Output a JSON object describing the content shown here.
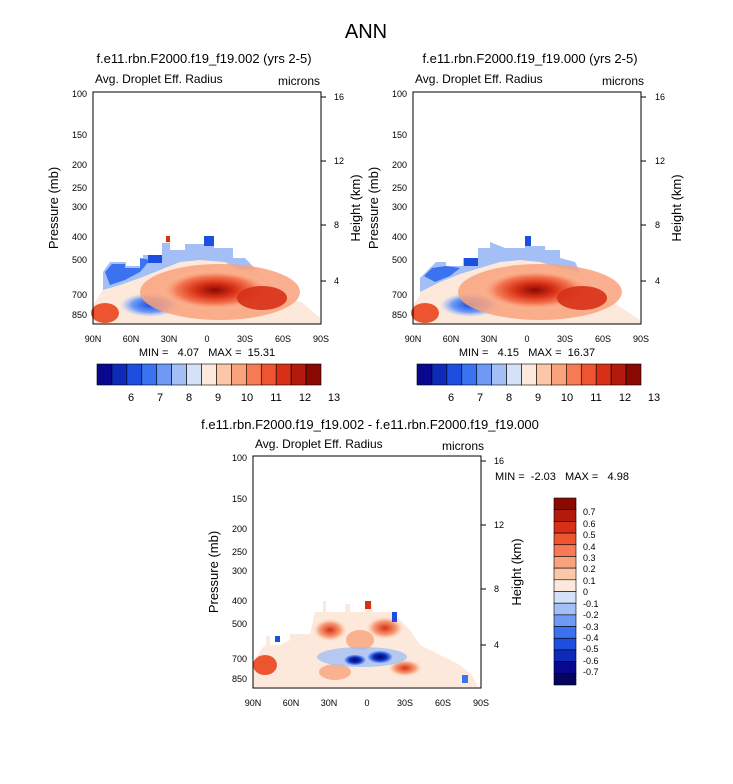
{
  "title": "ANN",
  "chart_data": [
    {
      "type": "heatmap",
      "title": "f.e11.rbn.F2000.f19_f19.002 (yrs 2-5)",
      "left_label": "Avg. Droplet Eff. Radius",
      "units": "microns",
      "ylabel": "Pressure (mb)",
      "y2label": "Height (km)",
      "x_ticks": [
        "90N",
        "60N",
        "30N",
        "0",
        "30S",
        "60S",
        "90S"
      ],
      "y_ticks": [
        "100",
        "150",
        "200",
        "250",
        "300",
        "400",
        "500",
        "700",
        "850"
      ],
      "y2_ticks": [
        "16",
        "12",
        "8",
        "4"
      ],
      "stats": "MIN =   4.07   MAX =  15.31",
      "colorbar_labels": [
        "6",
        "7",
        "8",
        "9",
        "10",
        "11",
        "12",
        "13"
      ],
      "colorbar_colors": [
        "#08088f",
        "#0d2bb8",
        "#1c4fe0",
        "#3a72f0",
        "#6e9af5",
        "#a3bff5",
        "#d3e2f7",
        "#fde9dc",
        "#fcc7a8",
        "#f9a27c",
        "#f57a55",
        "#ec5530",
        "#d73016",
        "#b31a0c",
        "#8a0a03"
      ]
    },
    {
      "type": "heatmap",
      "title": "f.e11.rbn.F2000.f19_f19.000 (yrs 2-5)",
      "left_label": "Avg. Droplet Eff. Radius",
      "units": "microns",
      "ylabel": "Pressure (mb)",
      "y2label": "Height (km)",
      "x_ticks": [
        "90N",
        "60N",
        "30N",
        "0",
        "30S",
        "60S",
        "90S"
      ],
      "y_ticks": [
        "100",
        "150",
        "200",
        "250",
        "300",
        "400",
        "500",
        "700",
        "850"
      ],
      "y2_ticks": [
        "16",
        "12",
        "8",
        "4"
      ],
      "stats": "MIN =   4.15   MAX =  16.37",
      "colorbar_labels": [
        "6",
        "7",
        "8",
        "9",
        "10",
        "11",
        "12",
        "13"
      ],
      "colorbar_colors": [
        "#08088f",
        "#0d2bb8",
        "#1c4fe0",
        "#3a72f0",
        "#6e9af5",
        "#a3bff5",
        "#d3e2f7",
        "#fde9dc",
        "#fcc7a8",
        "#f9a27c",
        "#f57a55",
        "#ec5530",
        "#d73016",
        "#b31a0c",
        "#8a0a03"
      ]
    },
    {
      "type": "heatmap",
      "title": "f.e11.rbn.F2000.f19_f19.002 - f.e11.rbn.F2000.f19_f19.000",
      "left_label": "Avg. Droplet Eff. Radius",
      "units": "microns",
      "ylabel": "Pressure (mb)",
      "y2label": "Height (km)",
      "x_ticks": [
        "90N",
        "60N",
        "30N",
        "0",
        "30S",
        "60S",
        "90S"
      ],
      "y_ticks": [
        "100",
        "150",
        "200",
        "250",
        "300",
        "400",
        "500",
        "700",
        "850"
      ],
      "y2_ticks": [
        "16",
        "12",
        "8",
        "4"
      ],
      "stats": "MIN =  -2.03   MAX =   4.98",
      "colorbar_labels": [
        "0.7",
        "0.6",
        "0.5",
        "0.4",
        "0.3",
        "0.2",
        "0.1",
        "0",
        "-0.1",
        "-0.2",
        "-0.3",
        "-0.4",
        "-0.5",
        "-0.6",
        "-0.7"
      ],
      "colorbar_colors": [
        "#8a0a03",
        "#b31a0c",
        "#d73016",
        "#ec5530",
        "#f57a55",
        "#f9a27c",
        "#fcc7a8",
        "#fde9dc",
        "#d3e2f7",
        "#a3bff5",
        "#6e9af5",
        "#3a72f0",
        "#1c4fe0",
        "#0d2bb8",
        "#08088f",
        "#050560"
      ]
    }
  ]
}
